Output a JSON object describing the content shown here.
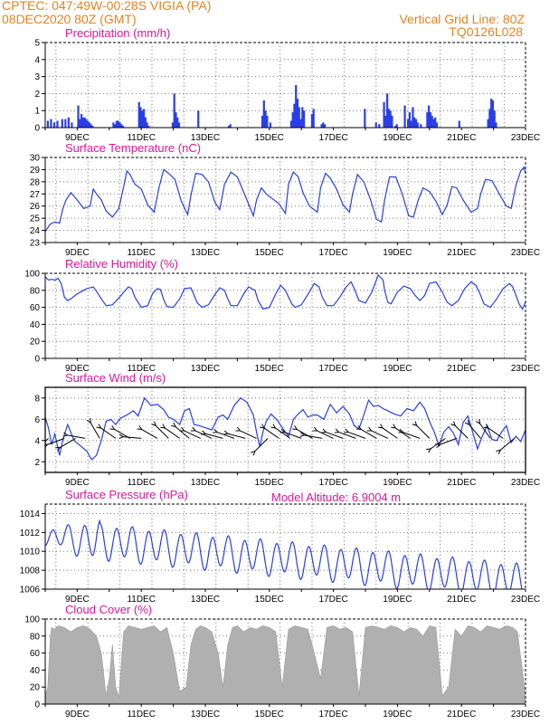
{
  "header": {
    "station": "CPTEC:   047:49W-00:28S   VIGIA (PA)",
    "date": "08DEC2020 80Z (GMT)",
    "grid_line": "Vertical Grid Line: 80Z",
    "code": "TQ0126L028"
  },
  "model_altitude": "Model Altitude: 6.9004 m",
  "colors": {
    "series": "#2a3ee8",
    "cloud": "#b0b0b0",
    "title": "#e0169a",
    "header": "#e8821e"
  },
  "chart_data": [
    {
      "id": "precip",
      "type": "bar",
      "title": "Precipitation (mm/h)",
      "xlabels": [
        "9DEC",
        "11DEC",
        "13DEC",
        "15DEC",
        "17DEC",
        "19DEC",
        "21DEC",
        "23DEC"
      ],
      "x_range_days": [
        8.0,
        23.0
      ],
      "ylim": [
        0,
        5
      ],
      "yticks": [
        0,
        1,
        2,
        3,
        4,
        5
      ],
      "x": [
        8.05,
        8.15,
        8.25,
        8.35,
        8.5,
        8.6,
        8.7,
        8.8,
        9.0,
        9.05,
        9.1,
        9.15,
        9.2,
        9.25,
        9.3,
        9.35,
        9.4,
        9.45,
        10.1,
        10.15,
        10.2,
        10.25,
        10.3,
        10.35,
        10.4,
        10.9,
        10.95,
        11.0,
        11.05,
        11.1,
        11.15,
        11.2,
        11.95,
        12.0,
        12.05,
        12.1,
        12.15,
        12.75,
        13.7,
        13.75,
        14.75,
        14.8,
        14.85,
        14.9,
        15.0,
        15.65,
        15.7,
        15.75,
        15.8,
        15.85,
        15.9,
        15.95,
        16.0,
        16.05,
        16.3,
        16.35,
        16.6,
        16.65,
        16.7,
        17.95,
        18.3,
        18.4,
        18.55,
        18.6,
        18.65,
        18.7,
        18.75,
        18.8,
        18.9,
        18.95,
        19.2,
        19.3,
        19.35,
        19.4,
        19.45,
        19.5,
        19.55,
        19.6,
        19.7,
        19.9,
        19.95,
        20.0,
        20.05,
        20.1,
        20.15,
        20.2,
        20.9,
        21.8,
        21.85,
        21.9,
        21.95,
        22.0,
        22.05
      ],
      "values": [
        0.4,
        0.5,
        0.3,
        0.4,
        0.5,
        0.5,
        0.6,
        0.3,
        1.3,
        0.5,
        0.8,
        0.6,
        0.6,
        0.5,
        0.4,
        0.3,
        0.2,
        0.1,
        0.3,
        0.2,
        0.4,
        0.4,
        0.3,
        0.2,
        0.1,
        1.5,
        1.2,
        1.0,
        1.1,
        0.6,
        0.3,
        0.1,
        0.3,
        2.0,
        0.9,
        0.6,
        0.3,
        1.0,
        0.1,
        0.2,
        0.7,
        1.6,
        1.0,
        0.7,
        0.3,
        0.4,
        0.9,
        1.4,
        2.5,
        1.7,
        1.2,
        0.5,
        1.2,
        1.0,
        0.8,
        1.1,
        0.2,
        0.3,
        0.2,
        1.1,
        0.3,
        0.2,
        1.5,
        0.7,
        2.0,
        1.1,
        1.0,
        0.7,
        0.1,
        0.2,
        1.3,
        0.5,
        0.9,
        0.4,
        1.2,
        0.6,
        0.5,
        0.3,
        0.2,
        0.9,
        1.3,
        0.9,
        0.7,
        0.5,
        0.6,
        0.3,
        0.4,
        0.5,
        1.1,
        1.7,
        1.6,
        1.0,
        0.3
      ]
    },
    {
      "id": "temp",
      "type": "line",
      "title": "Surface Temperature (nC)",
      "xlabels": [
        "9DEC",
        "11DEC",
        "13DEC",
        "15DEC",
        "17DEC",
        "19DEC",
        "21DEC",
        "23DEC"
      ],
      "x_range_days": [
        8.0,
        23.0
      ],
      "ylim": [
        23,
        30
      ],
      "yticks": [
        23,
        24,
        25,
        26,
        27,
        28,
        29,
        30
      ],
      "x": [
        8.0,
        8.15,
        8.3,
        8.45,
        8.55,
        8.65,
        8.8,
        9.0,
        9.2,
        9.4,
        9.5,
        9.6,
        9.75,
        9.9,
        10.1,
        10.3,
        10.45,
        10.55,
        10.65,
        10.8,
        11.0,
        11.2,
        11.4,
        11.55,
        11.7,
        11.85,
        12.05,
        12.25,
        12.45,
        12.55,
        12.7,
        12.9,
        13.1,
        13.3,
        13.45,
        13.6,
        13.8,
        14.0,
        14.3,
        14.5,
        14.6,
        14.75,
        14.9,
        15.1,
        15.3,
        15.5,
        15.6,
        15.75,
        15.9,
        16.05,
        16.25,
        16.5,
        16.6,
        16.75,
        16.9,
        17.1,
        17.3,
        17.5,
        17.6,
        17.75,
        17.95,
        18.15,
        18.35,
        18.5,
        18.6,
        18.75,
        18.95,
        19.15,
        19.35,
        19.5,
        19.65,
        19.8,
        20.0,
        20.2,
        20.4,
        20.55,
        20.7,
        20.85,
        21.05,
        21.3,
        21.5,
        21.6,
        21.75,
        21.95,
        22.2,
        22.4,
        22.55,
        22.7,
        22.85,
        22.95,
        23.0
      ],
      "values": [
        23.9,
        24.5,
        24.7,
        24.6,
        25.8,
        26.5,
        27.1,
        26.5,
        25.8,
        26.0,
        27.4,
        27.0,
        26.5,
        25.6,
        25.1,
        25.8,
        27.6,
        28.9,
        28.6,
        27.8,
        27.4,
        26.1,
        25.5,
        27.5,
        29.0,
        28.7,
        28.2,
        26.4,
        25.3,
        26.9,
        28.7,
        28.6,
        28.0,
        26.3,
        25.7,
        27.8,
        28.8,
        28.4,
        26.5,
        25.2,
        26.5,
        27.5,
        27.0,
        26.6,
        26.2,
        25.4,
        27.8,
        28.8,
        28.4,
        27.1,
        26.0,
        25.5,
        27.5,
        28.7,
        28.3,
        27.4,
        26.1,
        25.5,
        27.0,
        28.6,
        28.0,
        26.6,
        24.9,
        24.7,
        26.5,
        28.4,
        28.4,
        27.0,
        25.2,
        25.1,
        26.5,
        27.5,
        27.2,
        26.4,
        25.3,
        26.1,
        27.6,
        27.5,
        26.5,
        25.5,
        25.8,
        27.0,
        28.2,
        28.1,
        26.9,
        26.0,
        25.8,
        27.7,
        28.9,
        29.2,
        28.7
      ]
    },
    {
      "id": "rh",
      "type": "line",
      "title": "Relative Humidity (%)",
      "xlabels": [
        "9DEC",
        "11DEC",
        "13DEC",
        "15DEC",
        "17DEC",
        "19DEC",
        "21DEC",
        "23DEC"
      ],
      "x_range_days": [
        8.0,
        23.0
      ],
      "ylim": [
        0,
        100
      ],
      "yticks": [
        0,
        20,
        40,
        60,
        80,
        100
      ],
      "x": [
        8.0,
        8.1,
        8.2,
        8.3,
        8.4,
        8.5,
        8.6,
        8.7,
        8.8,
        9.0,
        9.2,
        9.3,
        9.5,
        9.6,
        9.75,
        9.9,
        10.1,
        10.3,
        10.5,
        10.6,
        10.7,
        10.8,
        11.0,
        11.2,
        11.35,
        11.5,
        11.6,
        11.7,
        11.8,
        12.0,
        12.2,
        12.35,
        12.55,
        12.65,
        12.75,
        12.9,
        13.1,
        13.3,
        13.45,
        13.6,
        13.7,
        13.8,
        14.0,
        14.2,
        14.35,
        14.55,
        14.65,
        14.8,
        15.0,
        15.2,
        15.35,
        15.5,
        15.6,
        15.7,
        15.8,
        16.0,
        16.2,
        16.4,
        16.55,
        16.65,
        16.8,
        17.0,
        17.2,
        17.4,
        17.55,
        17.65,
        17.8,
        18.0,
        18.2,
        18.4,
        18.55,
        18.6,
        18.7,
        18.8,
        19.0,
        19.2,
        19.4,
        19.55,
        19.7,
        19.85,
        20.0,
        20.2,
        20.4,
        20.55,
        20.7,
        20.9,
        21.1,
        21.3,
        21.45,
        21.6,
        21.7,
        21.9,
        22.1,
        22.3,
        22.5,
        22.6,
        22.7,
        22.8,
        22.9,
        23.0
      ],
      "values": [
        96,
        92,
        93,
        92,
        94,
        88,
        72,
        68,
        70,
        76,
        80,
        82,
        84,
        79,
        70,
        62,
        63,
        71,
        80,
        84,
        82,
        72,
        60,
        62,
        76,
        82,
        81,
        69,
        61,
        60,
        70,
        82,
        83,
        74,
        65,
        60,
        63,
        75,
        83,
        80,
        70,
        62,
        62,
        76,
        84,
        80,
        68,
        58,
        60,
        76,
        86,
        80,
        72,
        64,
        60,
        63,
        75,
        88,
        84,
        72,
        62,
        62,
        72,
        84,
        90,
        82,
        68,
        65,
        78,
        98,
        92,
        80,
        66,
        64,
        78,
        85,
        82,
        74,
        68,
        74,
        88,
        90,
        78,
        66,
        62,
        68,
        82,
        90,
        86,
        74,
        64,
        60,
        70,
        82,
        88,
        84,
        74,
        64,
        58,
        66
      ]
    },
    {
      "id": "wind",
      "type": "line",
      "title": "Surface Wind (m/s)",
      "xlabels": [
        "9DEC",
        "11DEC",
        "13DEC",
        "15DEC",
        "17DEC",
        "19DEC",
        "21DEC",
        "23DEC"
      ],
      "x_range_days": [
        8.0,
        23.0
      ],
      "ylim": [
        1,
        9
      ],
      "yticks": [
        2,
        4,
        6,
        8
      ],
      "x": [
        8.0,
        8.1,
        8.2,
        8.3,
        8.45,
        8.55,
        8.7,
        8.9,
        9.1,
        9.3,
        9.45,
        9.6,
        9.75,
        9.9,
        10.05,
        10.2,
        10.35,
        10.55,
        10.75,
        10.9,
        11.1,
        11.3,
        11.5,
        11.7,
        11.85,
        12.0,
        12.2,
        12.35,
        12.5,
        12.65,
        12.8,
        13.0,
        13.2,
        13.4,
        13.55,
        13.7,
        13.9,
        14.1,
        14.3,
        14.5,
        14.6,
        14.7,
        14.8,
        14.9,
        15.05,
        15.25,
        15.45,
        15.6,
        15.75,
        15.9,
        16.05,
        16.2,
        16.35,
        16.5,
        16.7,
        16.9,
        17.1,
        17.3,
        17.5,
        17.65,
        17.8,
        17.95,
        18.1,
        18.25,
        18.4,
        18.55,
        18.7,
        18.9,
        19.1,
        19.3,
        19.5,
        19.7,
        19.85,
        20.0,
        20.15,
        20.3,
        20.45,
        20.6,
        20.75,
        20.9,
        21.05,
        21.2,
        21.35,
        21.5,
        21.65,
        21.8,
        21.95,
        22.1,
        22.25,
        22.4,
        22.55,
        22.7,
        22.85,
        23.0
      ],
      "values": [
        6.2,
        5.2,
        3.6,
        4.6,
        2.6,
        4.1,
        5.5,
        4.0,
        3.5,
        3.0,
        2.2,
        2.6,
        4.0,
        5.8,
        6.0,
        5.5,
        6.1,
        6.4,
        6.8,
        6.3,
        8.0,
        7.3,
        7.4,
        6.9,
        6.2,
        6.0,
        5.5,
        6.8,
        7.0,
        5.5,
        5.4,
        5.2,
        5.0,
        6.2,
        6.4,
        6.0,
        7.3,
        8.0,
        7.6,
        6.4,
        4.8,
        3.4,
        4.8,
        5.8,
        6.5,
        5.9,
        5.0,
        4.4,
        6.0,
        6.5,
        6.9,
        6.2,
        6.4,
        6.4,
        6.0,
        7.4,
        6.6,
        7.2,
        6.5,
        5.4,
        5.1,
        6.4,
        7.8,
        7.2,
        7.3,
        7.0,
        6.8,
        6.5,
        6.3,
        7.0,
        6.8,
        7.6,
        7.0,
        5.8,
        4.8,
        3.5,
        4.8,
        5.3,
        4.7,
        3.6,
        5.7,
        6.3,
        4.8,
        3.2,
        4.4,
        5.4,
        4.1,
        4.0,
        4.8,
        5.4,
        3.8,
        4.4,
        3.9,
        5.0
      ],
      "arrows": [
        [
          8.1,
          45
        ],
        [
          8.6,
          20
        ],
        [
          8.95,
          30
        ],
        [
          9.25,
          -10
        ],
        [
          9.7,
          -60
        ],
        [
          10.2,
          -35
        ],
        [
          10.65,
          -30
        ],
        [
          11.0,
          -5
        ],
        [
          11.5,
          -30
        ],
        [
          11.85,
          -45
        ],
        [
          12.2,
          -35
        ],
        [
          12.5,
          -40
        ],
        [
          12.85,
          -25
        ],
        [
          13.2,
          -25
        ],
        [
          13.55,
          -15
        ],
        [
          13.9,
          -20
        ],
        [
          14.25,
          -15
        ],
        [
          14.6,
          -25
        ],
        [
          14.95,
          45
        ],
        [
          15.3,
          -35
        ],
        [
          15.65,
          -35
        ],
        [
          16.0,
          -20
        ],
        [
          16.35,
          -30
        ],
        [
          16.65,
          -10
        ],
        [
          17.0,
          -25
        ],
        [
          17.3,
          -20
        ],
        [
          17.7,
          -20
        ],
        [
          18.0,
          -20
        ],
        [
          18.35,
          -30
        ],
        [
          18.7,
          -25
        ],
        [
          19.0,
          -35
        ],
        [
          19.4,
          -35
        ],
        [
          19.7,
          -20
        ],
        [
          20.0,
          -45
        ],
        [
          20.5,
          35
        ],
        [
          20.85,
          20
        ],
        [
          21.2,
          -45
        ],
        [
          21.6,
          -50
        ],
        [
          21.9,
          -55
        ],
        [
          22.3,
          -35
        ],
        [
          22.65,
          40
        ]
      ]
    },
    {
      "id": "pressure",
      "type": "line",
      "title": "Surface Pressure (hPa)",
      "xlabels": [
        "9DEC",
        "11DEC",
        "13DEC",
        "15DEC",
        "17DEC",
        "19DEC",
        "21DEC",
        "23DEC"
      ],
      "x_range_days": [
        8.0,
        23.0
      ],
      "ylim": [
        1006,
        1015
      ],
      "yticks": [
        1006,
        1008,
        1010,
        1012,
        1014
      ]
    },
    {
      "id": "cloud",
      "type": "area",
      "title": "Cloud Cover (%)",
      "xlabels": [
        "9DEC",
        "11DEC",
        "13DEC",
        "15DEC",
        "17DEC",
        "19DEC",
        "21DEC",
        "23DEC"
      ],
      "x_range_days": [
        8.0,
        23.0
      ],
      "ylim": [
        0,
        100
      ],
      "yticks": [
        0,
        20,
        40,
        60,
        80,
        100
      ],
      "x": [
        8.0,
        8.08,
        8.16,
        8.2,
        8.3,
        8.4,
        8.6,
        8.8,
        9.0,
        9.2,
        9.4,
        9.6,
        9.75,
        9.9,
        10.0,
        10.1,
        10.2,
        10.3,
        10.45,
        10.6,
        10.8,
        11.0,
        11.2,
        11.4,
        11.6,
        11.8,
        12.0,
        12.2,
        12.4,
        12.55,
        12.7,
        12.85,
        13.0,
        13.2,
        13.4,
        13.55,
        13.7,
        13.85,
        14.0,
        14.2,
        14.4,
        14.6,
        14.8,
        15.0,
        15.2,
        15.4,
        15.6,
        15.8,
        16.0,
        16.2,
        16.4,
        16.6,
        16.8,
        17.0,
        17.2,
        17.4,
        17.6,
        17.8,
        18.0,
        18.2,
        18.4,
        18.6,
        18.8,
        19.0,
        19.2,
        19.4,
        19.6,
        19.8,
        20.0,
        20.2,
        20.4,
        20.6,
        20.8,
        21.0,
        21.2,
        21.4,
        21.6,
        21.8,
        22.0,
        22.2,
        22.4,
        22.6,
        22.75,
        22.9,
        23.0
      ],
      "values": [
        10,
        20,
        80,
        90,
        88,
        92,
        90,
        85,
        90,
        92,
        88,
        80,
        60,
        10,
        30,
        70,
        20,
        8,
        85,
        92,
        90,
        88,
        90,
        92,
        85,
        90,
        60,
        15,
        20,
        70,
        88,
        92,
        90,
        85,
        60,
        20,
        70,
        90,
        92,
        85,
        90,
        88,
        92,
        90,
        85,
        20,
        88,
        92,
        90,
        88,
        60,
        30,
        90,
        92,
        88,
        90,
        85,
        10,
        90,
        92,
        90,
        88,
        92,
        90,
        85,
        90,
        88,
        80,
        92,
        90,
        10,
        20,
        88,
        80,
        92,
        90,
        85,
        92,
        90,
        88,
        92,
        90,
        85,
        40,
        10
      ]
    }
  ]
}
